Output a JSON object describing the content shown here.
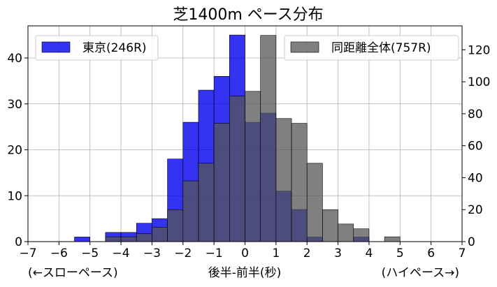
{
  "chart_data": {
    "type": "bar",
    "title": "芝1400m ペース分布",
    "xlabel": "後半-前半(秒)",
    "xlabel_left_note": "(←スローペース)",
    "xlabel_right_note": "(ハイペース→)",
    "xlim": [
      -7,
      7
    ],
    "x_ticks": [
      -7,
      -6,
      -5,
      -4,
      -3,
      -2,
      -1,
      0,
      1,
      2,
      3,
      4,
      5,
      6,
      7
    ],
    "bin_width": 0.5,
    "y_left": {
      "ylim": [
        0,
        47
      ],
      "ticks": [
        0,
        10,
        20,
        30,
        40
      ]
    },
    "y_right": {
      "ylim": [
        0,
        135
      ],
      "ticks": [
        0,
        20,
        40,
        60,
        80,
        100,
        120
      ]
    },
    "grid": true,
    "series": [
      {
        "name": "東京(246R)",
        "axis": "left",
        "color": "#0000ee",
        "bins": [
          {
            "x0": -5.5,
            "value": 1
          },
          {
            "x0": -4.5,
            "value": 2
          },
          {
            "x0": -4.0,
            "value": 2
          },
          {
            "x0": -3.5,
            "value": 4
          },
          {
            "x0": -3.0,
            "value": 5
          },
          {
            "x0": -2.5,
            "value": 18
          },
          {
            "x0": -2.0,
            "value": 26
          },
          {
            "x0": -1.5,
            "value": 33
          },
          {
            "x0": -1.0,
            "value": 36
          },
          {
            "x0": -0.5,
            "value": 45
          },
          {
            "x0": 0.0,
            "value": 26
          },
          {
            "x0": 0.5,
            "value": 28
          },
          {
            "x0": 1.0,
            "value": 11
          },
          {
            "x0": 1.5,
            "value": 7
          },
          {
            "x0": 2.0,
            "value": 1
          },
          {
            "x0": 3.5,
            "value": 1
          }
        ]
      },
      {
        "name": "同距離全体(757R)",
        "axis": "right",
        "color": "#555555",
        "bins": [
          {
            "x0": -4.5,
            "value": 3
          },
          {
            "x0": -4.0,
            "value": 3
          },
          {
            "x0": -3.5,
            "value": 5
          },
          {
            "x0": -3.0,
            "value": 9
          },
          {
            "x0": -2.5,
            "value": 20
          },
          {
            "x0": -2.0,
            "value": 38
          },
          {
            "x0": -1.5,
            "value": 49
          },
          {
            "x0": -1.0,
            "value": 74
          },
          {
            "x0": -0.5,
            "value": 91
          },
          {
            "x0": 0.0,
            "value": 94
          },
          {
            "x0": 0.5,
            "value": 129
          },
          {
            "x0": 1.0,
            "value": 77
          },
          {
            "x0": 1.5,
            "value": 74
          },
          {
            "x0": 2.0,
            "value": 49
          },
          {
            "x0": 2.5,
            "value": 20
          },
          {
            "x0": 3.0,
            "value": 11
          },
          {
            "x0": 3.5,
            "value": 8
          },
          {
            "x0": 4.5,
            "value": 3
          }
        ]
      }
    ]
  }
}
